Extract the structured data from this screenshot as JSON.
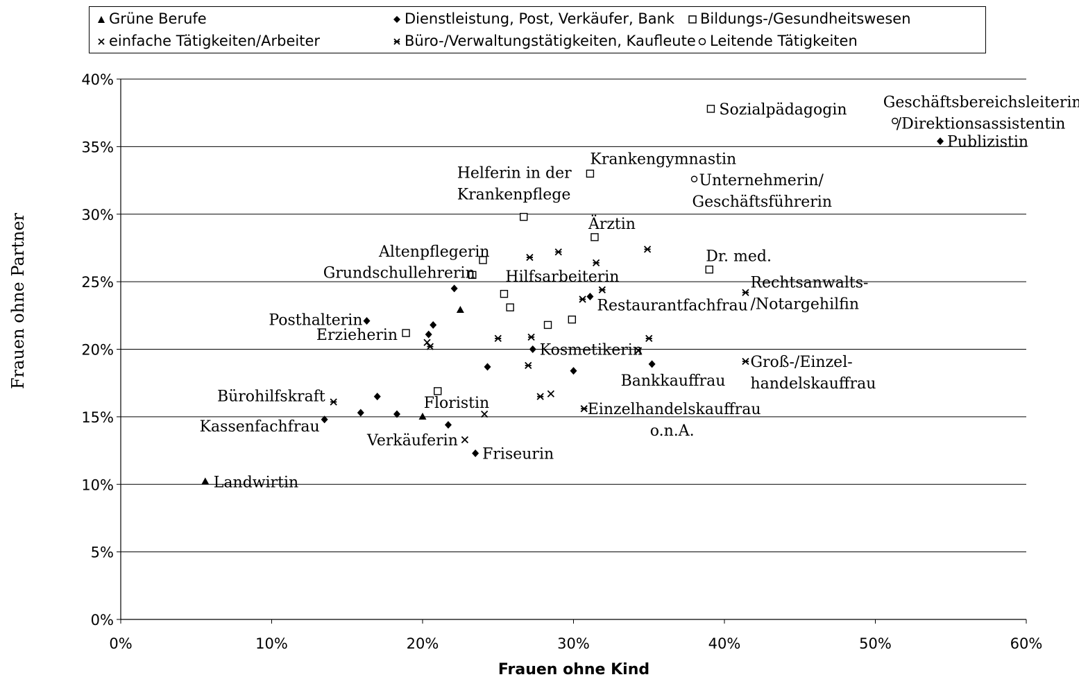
{
  "chart_data": {
    "type": "scatter",
    "xlabel": "Frauen ohne Kind",
    "ylabel": "Frauen ohne Partner",
    "xlim": [
      0,
      0.6
    ],
    "ylim": [
      0,
      0.4
    ],
    "x_ticks": [
      "0%",
      "10%",
      "20%",
      "30%",
      "40%",
      "50%",
      "60%"
    ],
    "y_ticks": [
      "0%",
      "5%",
      "10%",
      "15%",
      "20%",
      "25%",
      "30%",
      "35%",
      "40%"
    ],
    "grid": "horizontal",
    "legend_placement": "top",
    "series": [
      {
        "name": "Grüne Berufe",
        "marker": "triangle",
        "points": [
          {
            "x": 0.056,
            "y": 0.102,
            "label": "Landwirtin"
          },
          {
            "x": 0.2,
            "y": 0.15,
            "label": ""
          },
          {
            "x": 0.225,
            "y": 0.229,
            "label": ""
          }
        ]
      },
      {
        "name": "Dienstleistung, Post, Verkäufer, Bank",
        "marker": "diamond",
        "points": [
          {
            "x": 0.543,
            "y": 0.354,
            "label": "Publizistin"
          },
          {
            "x": 0.163,
            "y": 0.221,
            "label": "Posthalterin"
          },
          {
            "x": 0.135,
            "y": 0.148,
            "label": "Kassenfachfrau"
          },
          {
            "x": 0.235,
            "y": 0.123,
            "label": "Friseurin"
          },
          {
            "x": 0.273,
            "y": 0.2,
            "label": "Kosmetikerin"
          },
          {
            "x": 0.311,
            "y": 0.239,
            "label": "Restaurantfachfrau"
          },
          {
            "x": 0.352,
            "y": 0.189,
            "label": "Bankkauffrau"
          },
          {
            "x": 0.221,
            "y": 0.245,
            "label": ""
          },
          {
            "x": 0.207,
            "y": 0.218,
            "label": ""
          },
          {
            "x": 0.204,
            "y": 0.211,
            "label": ""
          },
          {
            "x": 0.17,
            "y": 0.165,
            "label": ""
          },
          {
            "x": 0.159,
            "y": 0.153,
            "label": ""
          },
          {
            "x": 0.183,
            "y": 0.152,
            "label": ""
          },
          {
            "x": 0.217,
            "y": 0.144,
            "label": ""
          },
          {
            "x": 0.243,
            "y": 0.187,
            "label": ""
          },
          {
            "x": 0.3,
            "y": 0.184,
            "label": ""
          }
        ]
      },
      {
        "name": "Bildungs-/Gesundheitswesen",
        "marker": "square",
        "points": [
          {
            "x": 0.391,
            "y": 0.378,
            "label": "Sozialpädagogin"
          },
          {
            "x": 0.311,
            "y": 0.33,
            "label": "Krankengymnastin"
          },
          {
            "x": 0.267,
            "y": 0.298,
            "label": "Helferin in der Krankenpflege"
          },
          {
            "x": 0.314,
            "y": 0.283,
            "label": "Ärztin"
          },
          {
            "x": 0.24,
            "y": 0.266,
            "label": "Altenpflegerin"
          },
          {
            "x": 0.233,
            "y": 0.255,
            "label": "Grundschullehrerin"
          },
          {
            "x": 0.39,
            "y": 0.259,
            "label": "Dr. med."
          },
          {
            "x": 0.189,
            "y": 0.212,
            "label": "Erzieherin"
          },
          {
            "x": 0.21,
            "y": 0.169,
            "label": "Floristin"
          },
          {
            "x": 0.254,
            "y": 0.241,
            "label": ""
          },
          {
            "x": 0.258,
            "y": 0.231,
            "label": ""
          },
          {
            "x": 0.283,
            "y": 0.218,
            "label": ""
          },
          {
            "x": 0.299,
            "y": 0.222,
            "label": ""
          }
        ]
      },
      {
        "name": "einfache Tätigkeiten/Arbeiter",
        "marker": "x",
        "points": [
          {
            "x": 0.228,
            "y": 0.133,
            "label": "Verkäuferin"
          },
          {
            "x": 0.203,
            "y": 0.205,
            "label": ""
          },
          {
            "x": 0.241,
            "y": 0.152,
            "label": ""
          },
          {
            "x": 0.285,
            "y": 0.167,
            "label": ""
          },
          {
            "x": 0.343,
            "y": 0.199,
            "label": ""
          }
        ]
      },
      {
        "name": "Büro-/Verwaltungstätigkeiten, Kaufleute",
        "marker": "asterisk",
        "points": [
          {
            "x": 0.141,
            "y": 0.161,
            "label": "Bürohilfskraft"
          },
          {
            "x": 0.271,
            "y": 0.268,
            "label": "Hilfsarbeiterin"
          },
          {
            "x": 0.414,
            "y": 0.242,
            "label": "Rechtsanwalts- /Notargehilfin"
          },
          {
            "x": 0.414,
            "y": 0.191,
            "label": "Groß-/Einzel- handelskauffrau"
          },
          {
            "x": 0.307,
            "y": 0.156,
            "label": "Einzelhandelskauffrau o.n.A."
          },
          {
            "x": 0.205,
            "y": 0.202,
            "label": ""
          },
          {
            "x": 0.25,
            "y": 0.208,
            "label": ""
          },
          {
            "x": 0.272,
            "y": 0.209,
            "label": ""
          },
          {
            "x": 0.27,
            "y": 0.188,
            "label": ""
          },
          {
            "x": 0.29,
            "y": 0.272,
            "label": ""
          },
          {
            "x": 0.315,
            "y": 0.264,
            "label": ""
          },
          {
            "x": 0.306,
            "y": 0.237,
            "label": ""
          },
          {
            "x": 0.319,
            "y": 0.244,
            "label": ""
          },
          {
            "x": 0.349,
            "y": 0.274,
            "label": ""
          },
          {
            "x": 0.35,
            "y": 0.208,
            "label": ""
          },
          {
            "x": 0.278,
            "y": 0.165,
            "label": ""
          }
        ]
      },
      {
        "name": "Leitende Tätigkeiten",
        "marker": "circle",
        "points": [
          {
            "x": 0.513,
            "y": 0.369,
            "label": "Geschäftsbereichsleiterin /Direktionsassistentin"
          },
          {
            "x": 0.38,
            "y": 0.326,
            "label": "Unternehmerin/ Geschäftsführerin"
          }
        ]
      }
    ]
  },
  "legend": {
    "items": [
      {
        "label": "Grüne Berufe",
        "marker": "triangle"
      },
      {
        "label": "Dienstleistung, Post, Verkäufer, Bank",
        "marker": "diamond"
      },
      {
        "label": "Bildungs-/Gesundheitswesen",
        "marker": "square"
      },
      {
        "label": "einfache Tätigkeiten/Arbeiter",
        "marker": "x"
      },
      {
        "label": "Büro-/Verwaltungstätigkeiten, Kaufleute",
        "marker": "asterisk"
      },
      {
        "label": "Leitende Tätigkeiten",
        "marker": "circle"
      }
    ]
  }
}
